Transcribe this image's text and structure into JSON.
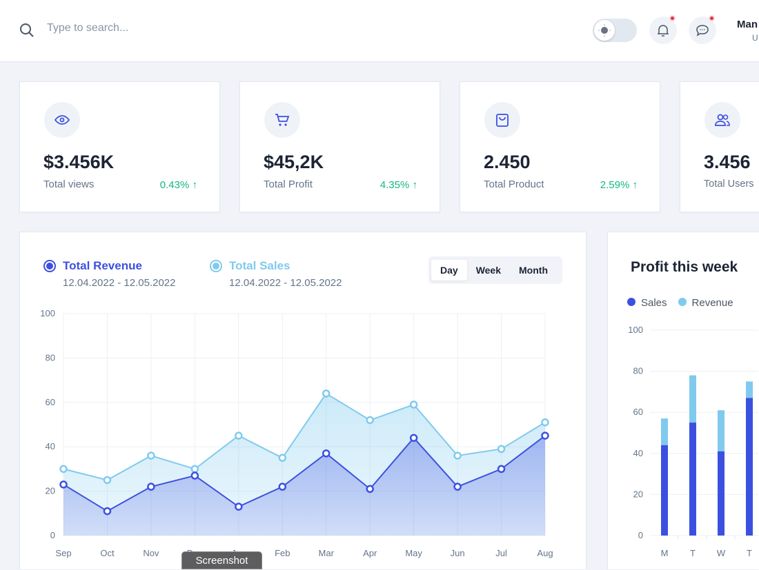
{
  "header": {
    "search_placeholder": "Type to search...",
    "user_name": "Man",
    "user_role": "U",
    "notifications_badge": true,
    "messages_badge": true
  },
  "stats": [
    {
      "icon": "eye-icon",
      "value": "$3.456K",
      "label": "Total views",
      "change": "0.43%"
    },
    {
      "icon": "cart-icon",
      "value": "$45,2K",
      "label": "Total Profit",
      "change": "4.35%"
    },
    {
      "icon": "bag-icon",
      "value": "2.450",
      "label": "Total Product",
      "change": "2.59%"
    },
    {
      "icon": "users-icon",
      "value": "3.456",
      "label": "Total Users",
      "change": ""
    }
  ],
  "colors": {
    "primary": "#3c50e0",
    "secondary": "#80caee",
    "positive": "#10b981"
  },
  "revenue_chart": {
    "legend": [
      {
        "title": "Total Revenue",
        "date": "12.04.2022 - 12.05.2022"
      },
      {
        "title": "Total Sales",
        "date": "12.04.2022 - 12.05.2022"
      }
    ],
    "tabs": [
      "Day",
      "Week",
      "Month"
    ],
    "active_tab": "Day"
  },
  "profit_chart": {
    "title": "Profit this week",
    "legend": [
      "Sales",
      "Revenue"
    ]
  },
  "tooltip": "Screenshot",
  "chart_data": [
    {
      "type": "area",
      "title": "Total Revenue / Total Sales",
      "categories": [
        "Sep",
        "Oct",
        "Nov",
        "Dec",
        "Jan",
        "Feb",
        "Mar",
        "Apr",
        "May",
        "Jun",
        "Jul",
        "Aug"
      ],
      "ylim": [
        0,
        100
      ],
      "yticks": [
        0,
        20,
        40,
        60,
        80,
        100
      ],
      "grid": true,
      "series": [
        {
          "name": "Total Revenue",
          "values": [
            23,
            11,
            22,
            27,
            13,
            22,
            37,
            21,
            44,
            22,
            30,
            45
          ]
        },
        {
          "name": "Total Sales",
          "values": [
            30,
            25,
            36,
            30,
            45,
            35,
            64,
            52,
            59,
            36,
            39,
            51
          ]
        }
      ]
    },
    {
      "type": "bar",
      "stacked": true,
      "title": "Profit this week",
      "categories": [
        "M",
        "T",
        "W",
        "T"
      ],
      "ylim": [
        0,
        100
      ],
      "yticks": [
        0,
        20,
        40,
        60,
        80,
        100
      ],
      "legend_position": "top-left",
      "series": [
        {
          "name": "Sales",
          "values": [
            44,
            55,
            41,
            67
          ]
        },
        {
          "name": "Revenue",
          "values": [
            13,
            23,
            20,
            8
          ]
        }
      ]
    }
  ]
}
